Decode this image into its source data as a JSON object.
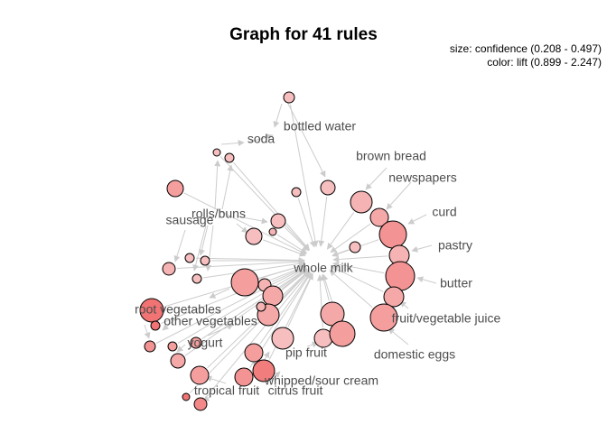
{
  "title": "Graph for 41 rules",
  "legend": {
    "size_line": "size: confidence (0.208 - 0.497)",
    "color_line": "color: lift (0.899 - 2.247)"
  },
  "colors": {
    "edge": "#cccccc",
    "node_stroke": "#000000",
    "label": "#4d4d4d",
    "lift_low": "#f7d3d3",
    "lift_high": "#f06868"
  },
  "items": [
    "bottled water",
    "soda",
    "brown bread",
    "newspapers",
    "curd",
    "pastry",
    "butter",
    "fruit/vegetable juice",
    "domestic eggs",
    "whole milk",
    "rolls/buns",
    "sausage",
    "root vegetables",
    "other vegetables",
    "yogurt",
    "pip fruit",
    "whipped/sour cream",
    "tropical fruit",
    "citrus fruit"
  ]
}
